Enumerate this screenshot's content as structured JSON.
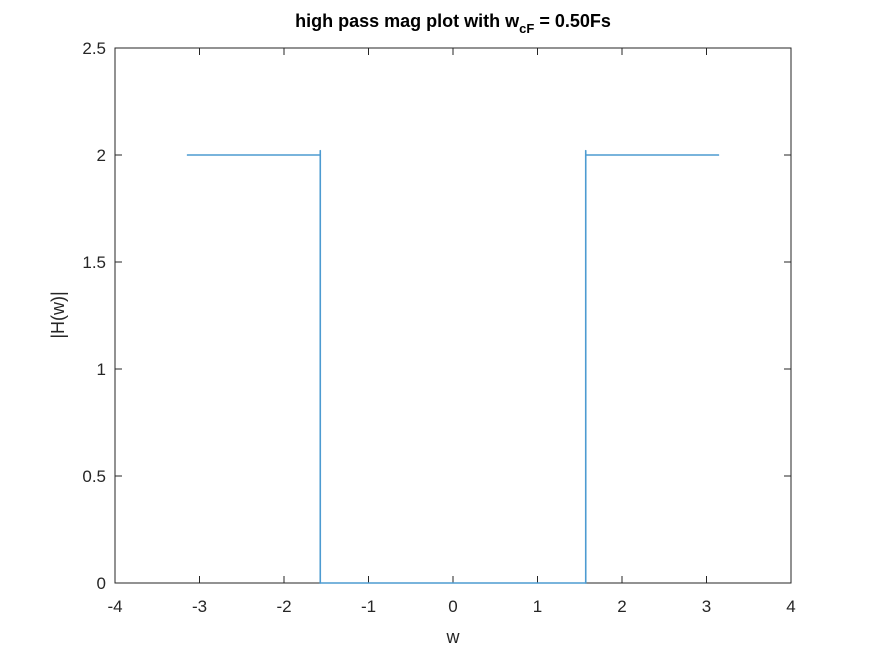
{
  "chart_data": {
    "type": "line",
    "title": {
      "prefix": "high pass mag plot with w",
      "subscript": "cF",
      "suffix": " = 0.50Fs"
    },
    "xlabel": "w",
    "ylabel": "|H(w)|",
    "xlim": [
      -4,
      4
    ],
    "ylim": [
      0,
      2.5
    ],
    "xticks": [
      -4,
      -3,
      -2,
      -1,
      0,
      1,
      2,
      3,
      4
    ],
    "xtick_labels": [
      "-4",
      "-3",
      "-2",
      "-1",
      "0",
      "1",
      "2",
      "3",
      "4"
    ],
    "yticks": [
      0,
      0.5,
      1,
      1.5,
      2,
      2.5
    ],
    "ytick_labels": [
      "0",
      "0.5",
      "1",
      "1.5",
      "2",
      "2.5"
    ],
    "grid": false,
    "series": [
      {
        "color": "#4d9bd1",
        "x": [
          -3.1416,
          -1.5708,
          -1.5708,
          -1.5708,
          1.5708,
          1.5708,
          1.5708,
          3.1416
        ],
        "y": [
          2.0,
          2.0,
          2.02,
          0.0,
          0.0,
          2.02,
          2.0,
          2.0
        ]
      }
    ]
  }
}
